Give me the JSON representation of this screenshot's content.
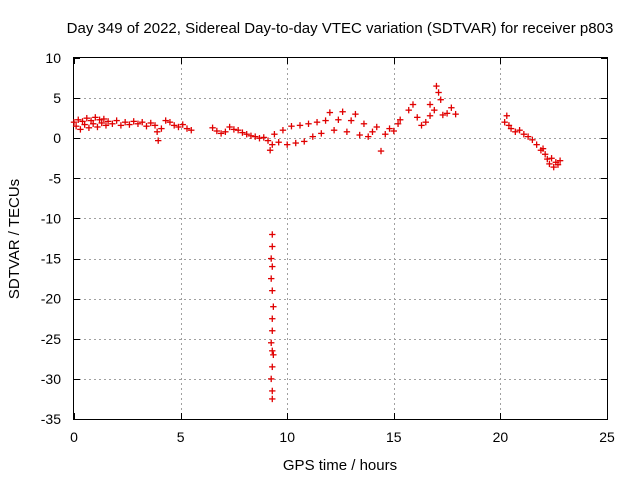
{
  "chart_data": {
    "type": "scatter",
    "title": "Day 349 of 2022, Sidereal Day-to-day VTEC variation (SDTVAR) for receiver p803",
    "xlabel": "GPS time / hours",
    "ylabel": "SDTVAR / TECUs",
    "xlim": [
      0,
      25
    ],
    "ylim": [
      -35,
      10
    ],
    "xticks": [
      0,
      5,
      10,
      15,
      20,
      25
    ],
    "xtick_labels": [
      "0",
      "5",
      "10",
      "15",
      "20",
      "25"
    ],
    "yticks": [
      10,
      5,
      0,
      -5,
      -10,
      -15,
      -20,
      -25,
      -30,
      -35
    ],
    "ytick_labels": [
      "10",
      "5",
      "0",
      "-5",
      "-10",
      "-15",
      "-20",
      "-25",
      "-30",
      "-35"
    ],
    "grid": true,
    "marker": "+",
    "marker_color": "#e00000",
    "series": [
      {
        "name": "SDTVAR",
        "points": [
          [
            0.0,
            2.0
          ],
          [
            0.1,
            1.5
          ],
          [
            0.2,
            2.3
          ],
          [
            0.3,
            1.1
          ],
          [
            0.4,
            2.1
          ],
          [
            0.5,
            1.7
          ],
          [
            0.6,
            2.5
          ],
          [
            0.7,
            1.3
          ],
          [
            0.8,
            2.2
          ],
          [
            0.9,
            1.8
          ],
          [
            1.0,
            2.6
          ],
          [
            1.1,
            1.4
          ],
          [
            1.2,
            2.3
          ],
          [
            1.3,
            1.9
          ],
          [
            1.4,
            2.4
          ],
          [
            1.5,
            1.6
          ],
          [
            1.6,
            2.1
          ],
          [
            1.8,
            1.8
          ],
          [
            2.0,
            2.2
          ],
          [
            2.2,
            1.6
          ],
          [
            2.4,
            2.0
          ],
          [
            2.6,
            1.7
          ],
          [
            2.8,
            2.1
          ],
          [
            3.0,
            1.8
          ],
          [
            3.2,
            2.0
          ],
          [
            3.4,
            1.5
          ],
          [
            3.6,
            1.9
          ],
          [
            3.8,
            1.6
          ],
          [
            3.9,
            0.8
          ],
          [
            3.95,
            -0.3
          ],
          [
            4.1,
            1.2
          ],
          [
            4.3,
            2.2
          ],
          [
            4.5,
            2.0
          ],
          [
            4.7,
            1.6
          ],
          [
            4.9,
            1.4
          ],
          [
            5.1,
            1.7
          ],
          [
            5.3,
            1.2
          ],
          [
            5.5,
            1.0
          ],
          [
            6.5,
            1.3
          ],
          [
            6.7,
            0.9
          ],
          [
            6.9,
            0.6
          ],
          [
            7.1,
            0.8
          ],
          [
            7.3,
            1.4
          ],
          [
            7.5,
            1.1
          ],
          [
            7.7,
            1.0
          ],
          [
            7.9,
            0.7
          ],
          [
            8.1,
            0.5
          ],
          [
            8.3,
            0.3
          ],
          [
            8.5,
            0.2
          ],
          [
            8.7,
            0.0
          ],
          [
            8.9,
            0.1
          ],
          [
            9.1,
            -0.3
          ],
          [
            9.2,
            -1.5
          ],
          [
            9.3,
            -0.8
          ],
          [
            9.4,
            0.5
          ],
          [
            9.6,
            -0.5
          ],
          [
            9.8,
            1.0
          ],
          [
            10.0,
            -0.8
          ],
          [
            10.2,
            1.5
          ],
          [
            10.4,
            -0.6
          ],
          [
            10.6,
            1.6
          ],
          [
            10.8,
            -0.4
          ],
          [
            11.0,
            1.8
          ],
          [
            11.2,
            0.2
          ],
          [
            11.4,
            2.0
          ],
          [
            11.6,
            0.6
          ],
          [
            11.8,
            2.2
          ],
          [
            12.0,
            3.2
          ],
          [
            12.2,
            1.0
          ],
          [
            12.4,
            2.3
          ],
          [
            12.6,
            3.3
          ],
          [
            12.8,
            0.8
          ],
          [
            13.0,
            2.2
          ],
          [
            13.2,
            3.0
          ],
          [
            13.4,
            0.4
          ],
          [
            13.6,
            1.8
          ],
          [
            13.8,
            0.2
          ],
          [
            14.0,
            0.8
          ],
          [
            14.2,
            1.4
          ],
          [
            14.4,
            -1.6
          ],
          [
            14.6,
            0.5
          ],
          [
            14.8,
            1.2
          ],
          [
            15.0,
            0.9
          ],
          [
            15.2,
            1.8
          ],
          [
            15.3,
            2.3
          ],
          [
            15.7,
            3.5
          ],
          [
            15.9,
            4.2
          ],
          [
            16.1,
            2.6
          ],
          [
            16.3,
            1.6
          ],
          [
            16.5,
            2.0
          ],
          [
            16.7,
            2.8
          ],
          [
            16.9,
            3.5
          ],
          [
            17.0,
            6.5
          ],
          [
            17.1,
            5.7
          ],
          [
            17.2,
            4.8
          ],
          [
            17.3,
            2.9
          ],
          [
            17.5,
            3.1
          ],
          [
            17.7,
            3.8
          ],
          [
            17.9,
            3.0
          ],
          [
            16.7,
            4.2
          ],
          [
            20.2,
            2.0
          ],
          [
            20.3,
            2.8
          ],
          [
            20.4,
            1.6
          ],
          [
            20.5,
            1.2
          ],
          [
            20.7,
            0.8
          ],
          [
            20.9,
            1.0
          ],
          [
            21.1,
            0.5
          ],
          [
            21.3,
            0.2
          ],
          [
            21.5,
            -0.2
          ],
          [
            21.7,
            -0.8
          ],
          [
            21.9,
            -1.5
          ],
          [
            22.0,
            -1.3
          ],
          [
            22.1,
            -2.0
          ],
          [
            22.2,
            -2.6
          ],
          [
            22.3,
            -3.2
          ],
          [
            22.4,
            -2.5
          ],
          [
            22.5,
            -3.6
          ],
          [
            22.6,
            -3.0
          ],
          [
            22.7,
            -3.3
          ],
          [
            22.8,
            -2.8
          ],
          [
            9.3,
            -12.0
          ],
          [
            9.3,
            -13.5
          ],
          [
            9.25,
            -15.0
          ],
          [
            9.3,
            -16.0
          ],
          [
            9.25,
            -17.5
          ],
          [
            9.3,
            -19.0
          ],
          [
            9.35,
            -21.0
          ],
          [
            9.3,
            -22.5
          ],
          [
            9.3,
            -24.0
          ],
          [
            9.25,
            -25.5
          ],
          [
            9.3,
            -26.5
          ],
          [
            9.35,
            -27.0
          ],
          [
            9.3,
            -28.5
          ],
          [
            9.25,
            -30.0
          ],
          [
            9.3,
            -31.5
          ],
          [
            9.3,
            -32.5
          ]
        ]
      }
    ]
  }
}
